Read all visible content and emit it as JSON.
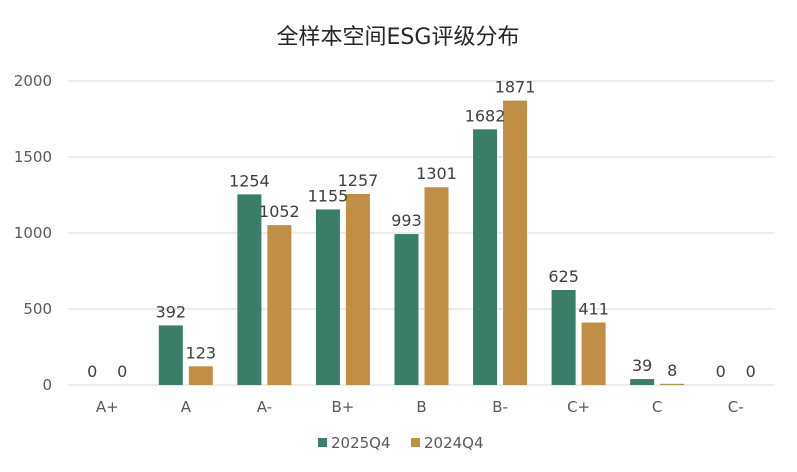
{
  "chart_data": {
    "type": "bar",
    "title": "全样本空间ESG评级分布",
    "categories": [
      "A+",
      "A",
      "A-",
      "B+",
      "B",
      "B-",
      "C+",
      "C",
      "C-"
    ],
    "series": [
      {
        "name": "2025Q4",
        "color": "#3a7d68",
        "values": [
          0,
          392,
          1254,
          1155,
          993,
          1682,
          625,
          39,
          0
        ]
      },
      {
        "name": "2024Q4",
        "color": "#c08f45",
        "values": [
          0,
          123,
          1052,
          1257,
          1301,
          1871,
          411,
          8,
          0
        ]
      }
    ],
    "y_ticks": [
      "0",
      "500",
      "1000",
      "1500",
      "2000"
    ],
    "ylim": [
      0,
      2000
    ],
    "grid": true,
    "legend_position": "bottom"
  }
}
